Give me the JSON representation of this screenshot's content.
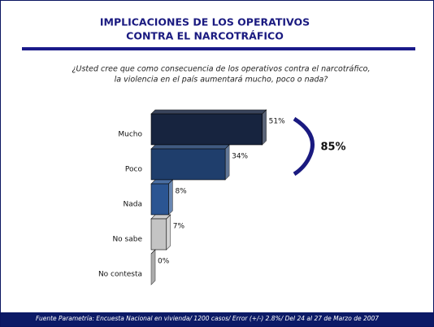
{
  "chart_data": {
    "type": "bar",
    "orientation": "horizontal",
    "title": [
      "IMPLICACIONES DE LOS OPERATIVOS",
      "CONTRA EL NARCOTRÁFICO"
    ],
    "subtitle": [
      "¿Usted cree que como consecuencia de los operativos contra el narcotráfico,",
      "la violencia en el país aumentará mucho, poco o nada?"
    ],
    "categories": [
      "Mucho",
      "Poco",
      "Nada",
      "No sabe",
      "No contesta"
    ],
    "values": [
      51,
      34,
      8,
      7,
      0
    ],
    "value_labels": [
      "51%",
      "34%",
      "8%",
      "7%",
      "0%"
    ],
    "colors": [
      "#17243f",
      "#1f3e6c",
      "#2b5592",
      "#c4c4c4",
      "#8a8a8a"
    ],
    "annotation": "85%",
    "source": "Fuente Parametría: Encuesta Nacional en vivienda/ 1200 casos/ Error (+/-) 2.8%/ Del 24 al 27 de Marzo de 2007"
  }
}
